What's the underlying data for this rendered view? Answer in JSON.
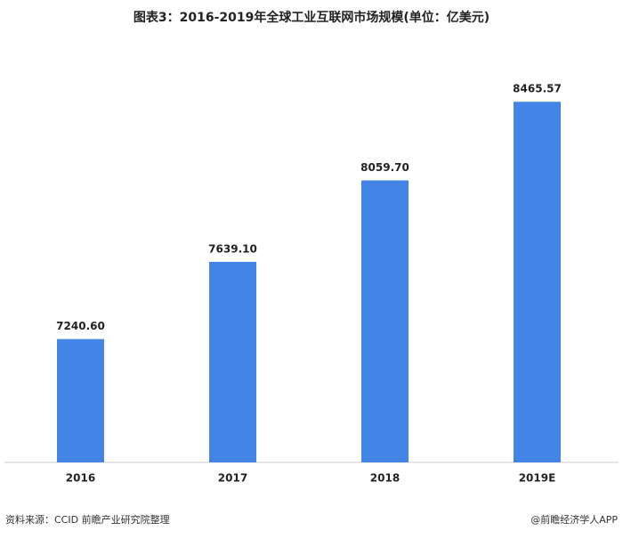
{
  "chart_data": {
    "type": "bar",
    "title": "图表3：2016-2019年全球工业互联网市场规模(单位：亿美元)",
    "categories": [
      "2016",
      "2017",
      "2018",
      "2019E"
    ],
    "values": [
      7240.6,
      7639.1,
      8059.7,
      8465.57
    ],
    "value_labels": [
      "7240.60",
      "7639.10",
      "8059.70",
      "8465.57"
    ],
    "color": "#4285e6",
    "ylim": [
      6604,
      8600
    ],
    "source": "资料来源：CCID 前瞻产业研究院整理",
    "credit": "@前瞻经济学人APP"
  }
}
